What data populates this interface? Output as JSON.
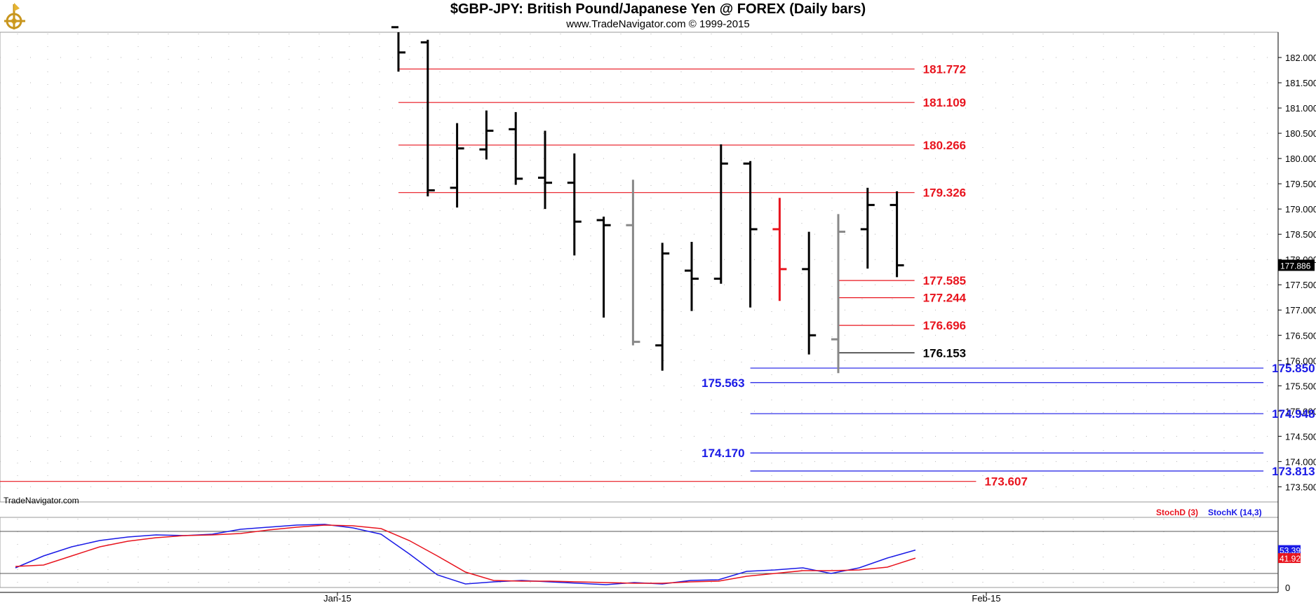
{
  "header": {
    "title": "$GBP-JPY:  British Pound/Japanese Yen @ FOREX  (Daily bars)",
    "subtitle": "www.TradeNavigator.com © 1999-2015"
  },
  "watermark": "TradeNavigator.com",
  "colors": {
    "red": "#e8141e",
    "blue": "#1a1ae6",
    "black": "#000000",
    "gray": "#888888",
    "grid": "#b4b4b4"
  },
  "chart_data": [
    {
      "type": "ohlc",
      "ylim": [
        173.2,
        182.5
      ],
      "y_ticks": [
        "182.000",
        "181.500",
        "181.000",
        "180.500",
        "180.000",
        "179.500",
        "179.000",
        "178.500",
        "178.000",
        "177.500",
        "177.000",
        "176.500",
        "176.000",
        "175.500",
        "175.000",
        "174.500",
        "174.000",
        "173.500"
      ],
      "x_ticks": [
        "Jan-15",
        "Feb-15"
      ],
      "last_price": "177.886",
      "bars": [
        {
          "o": 182.6,
          "h": 182.6,
          "l": 181.72,
          "c": 182.1,
          "color": "black"
        },
        {
          "o": 182.3,
          "h": 182.35,
          "l": 179.25,
          "c": 179.37,
          "color": "black"
        },
        {
          "o": 179.42,
          "h": 180.7,
          "l": 179.03,
          "c": 180.2,
          "color": "black"
        },
        {
          "o": 180.18,
          "h": 180.95,
          "l": 179.98,
          "c": 180.55,
          "color": "black"
        },
        {
          "o": 180.58,
          "h": 180.92,
          "l": 179.48,
          "c": 179.6,
          "color": "black"
        },
        {
          "o": 179.62,
          "h": 180.55,
          "l": 179.0,
          "c": 179.52,
          "color": "black"
        },
        {
          "o": 179.52,
          "h": 180.1,
          "l": 178.08,
          "c": 178.75,
          "color": "black"
        },
        {
          "o": 178.78,
          "h": 178.85,
          "l": 176.85,
          "c": 178.68,
          "color": "black"
        },
        {
          "o": 178.68,
          "h": 179.58,
          "l": 176.3,
          "c": 176.37,
          "color": "gray"
        },
        {
          "o": 176.3,
          "h": 178.33,
          "l": 175.8,
          "c": 178.12,
          "color": "black"
        },
        {
          "o": 177.78,
          "h": 178.35,
          "l": 176.98,
          "c": 177.62,
          "color": "black"
        },
        {
          "o": 177.62,
          "h": 180.28,
          "l": 177.52,
          "c": 179.9,
          "color": "black"
        },
        {
          "o": 179.9,
          "h": 179.95,
          "l": 177.05,
          "c": 178.6,
          "color": "black"
        },
        {
          "o": 178.6,
          "h": 179.22,
          "l": 177.18,
          "c": 177.81,
          "color": "red"
        },
        {
          "o": 177.81,
          "h": 178.55,
          "l": 176.12,
          "c": 176.5,
          "color": "black"
        },
        {
          "o": 176.42,
          "h": 178.9,
          "l": 175.75,
          "c": 178.55,
          "color": "gray"
        },
        {
          "o": 178.6,
          "h": 179.42,
          "l": 177.82,
          "c": 179.08,
          "color": "black"
        },
        {
          "o": 179.08,
          "h": 179.35,
          "l": 177.65,
          "c": 177.886,
          "color": "black"
        }
      ],
      "levels": [
        {
          "value": 181.772,
          "label": "181.772",
          "color": "red",
          "x0": 0,
          "x1": 17.6,
          "label_side": "right"
        },
        {
          "value": 181.109,
          "label": "181.109",
          "color": "red",
          "x0": 0,
          "x1": 17.6,
          "label_side": "right"
        },
        {
          "value": 180.266,
          "label": "180.266",
          "color": "red",
          "x0": 0,
          "x1": 17.6,
          "label_side": "right"
        },
        {
          "value": 179.326,
          "label": "179.326",
          "color": "red",
          "x0": 0,
          "x1": 17.6,
          "label_side": "right"
        },
        {
          "value": 177.585,
          "label": "177.585",
          "color": "red",
          "x0": 15,
          "x1": 17.6,
          "label_side": "right"
        },
        {
          "value": 177.244,
          "label": "177.244",
          "color": "red",
          "x0": 15,
          "x1": 17.6,
          "label_side": "right"
        },
        {
          "value": 176.696,
          "label": "176.696",
          "color": "red",
          "x0": 15,
          "x1": 17.6,
          "label_side": "right"
        },
        {
          "value": 176.153,
          "label": "176.153",
          "color": "black",
          "x0": 15,
          "x1": 17.6,
          "label_side": "right"
        },
        {
          "value": 175.85,
          "label": "175.850",
          "color": "blue",
          "x0": 12,
          "x1": 29.5,
          "label_side": "right"
        },
        {
          "value": 175.563,
          "label": "175.563",
          "color": "blue",
          "x0": 12,
          "x1": 29.5,
          "label_side": "left"
        },
        {
          "value": 174.948,
          "label": "174.948",
          "color": "blue",
          "x0": 12,
          "x1": 29.5,
          "label_side": "right"
        },
        {
          "value": 174.17,
          "label": "174.170",
          "color": "blue",
          "x0": 12,
          "x1": 29.5,
          "label_side": "left"
        },
        {
          "value": 173.813,
          "label": "173.813",
          "color": "blue",
          "x0": 12,
          "x1": 29.5,
          "label_side": "right"
        },
        {
          "value": 173.607,
          "label": "173.607",
          "color": "red",
          "x0": -14,
          "x1": 19.7,
          "label_side": "right"
        }
      ]
    },
    {
      "type": "line",
      "ylim": [
        0,
        100
      ],
      "y_tick_zero": "0",
      "legend": {
        "stochd": "StochD (3)",
        "stochk": "StochK (14,3)"
      },
      "value_labels": {
        "stochk": "53.39",
        "stochd": "41.92"
      },
      "series": [
        {
          "name": "StochK (14,3)",
          "color": "blue",
          "values": [
            28,
            45,
            58,
            67,
            72,
            75,
            74,
            76,
            83,
            86,
            89,
            90,
            85,
            76,
            48,
            18,
            5,
            8,
            10,
            8,
            6,
            4,
            7,
            5,
            10,
            11,
            23,
            25,
            28,
            20,
            28,
            42,
            53.39
          ]
        },
        {
          "name": "StochD (3)",
          "color": "red",
          "values": [
            30,
            32,
            45,
            58,
            66,
            71,
            74,
            75,
            77,
            82,
            86,
            89,
            88,
            84,
            67,
            45,
            22,
            10,
            9,
            9,
            8,
            7,
            6,
            6,
            8,
            9,
            16,
            20,
            24,
            24,
            25,
            29,
            41.92
          ]
        }
      ]
    }
  ]
}
